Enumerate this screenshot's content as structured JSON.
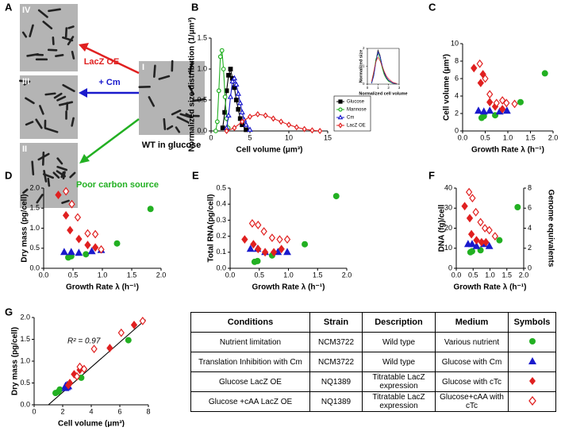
{
  "panel_labels": [
    "A",
    "B",
    "C",
    "D",
    "E",
    "F",
    "G"
  ],
  "panel_a": {
    "images": [
      "IV",
      "III",
      "II",
      "I"
    ],
    "arrows": [
      "LacZ OE",
      "+ Cm",
      "Poor carbon source"
    ],
    "caption": "WT in glucose"
  },
  "chart_data": [
    {
      "type": "line",
      "xlabel": "Cell volume (μm³)",
      "ylabel": "Normalized size distribution (1/μm³)",
      "xlim": [
        0,
        15
      ],
      "xticks": [
        0,
        5,
        10,
        15
      ],
      "ylim": [
        0,
        1.5
      ],
      "yticks": [
        {
          "value": 0,
          "label": "0.0"
        },
        0.5,
        {
          "value": 1,
          "label": "1.0"
        },
        1.5
      ],
      "legend": "lower right",
      "series": [
        {
          "name": "Glucose",
          "color": "#000000",
          "marker": "square",
          "open": false,
          "x": [
            1.5,
            1.75,
            2.0,
            2.25,
            2.5,
            2.75,
            3.0,
            3.25,
            3.5,
            3.75,
            4.0,
            4.5
          ],
          "values": [
            0.05,
            0.3,
            0.65,
            0.9,
            1.0,
            0.85,
            0.7,
            0.5,
            0.35,
            0.2,
            0.1,
            0.02
          ]
        },
        {
          "name": "Mannose",
          "color": "#22b022",
          "marker": "circle",
          "open": true,
          "x": [
            0.6,
            0.8,
            1.0,
            1.2,
            1.4,
            1.6,
            1.8,
            2.0,
            2.2
          ],
          "values": [
            0,
            0.15,
            0.65,
            1.2,
            1.3,
            1.0,
            0.55,
            0.2,
            0.05
          ]
        },
        {
          "name": "Cm",
          "color": "#1a1acc",
          "marker": "triangle",
          "open": true,
          "x": [
            2.0,
            2.25,
            2.5,
            2.75,
            3.0,
            3.25,
            3.5,
            3.75,
            4.0,
            4.25,
            4.5,
            5.0
          ],
          "values": [
            0.05,
            0.25,
            0.55,
            0.8,
            0.85,
            0.75,
            0.6,
            0.45,
            0.3,
            0.18,
            0.1,
            0.02
          ]
        },
        {
          "name": "LacZ OE",
          "color": "#e02020",
          "marker": "diamond",
          "open": true,
          "x": [
            2,
            3,
            4,
            5,
            6,
            7,
            8,
            9,
            10,
            11,
            12,
            13,
            14
          ],
          "values": [
            0,
            0.05,
            0.15,
            0.23,
            0.27,
            0.25,
            0.2,
            0.15,
            0.1,
            0.06,
            0.03,
            0.01,
            0
          ]
        }
      ]
    },
    {
      "type": "line",
      "xlabel": "Normalized cell volume",
      "ylabel": "Normalized size",
      "frame": true,
      "xlim": [
        0,
        3
      ],
      "xticks": [
        0,
        1,
        2,
        3
      ],
      "ylim": [
        0,
        2
      ],
      "yticks": [
        0,
        1,
        2
      ],
      "x": [
        0.4,
        0.6,
        0.8,
        1.0,
        1.2,
        1.4,
        1.6,
        1.8,
        2.0,
        2.4,
        2.8
      ],
      "series": [
        {
          "color": "#000000",
          "values": [
            0.05,
            0.5,
            1.3,
            1.9,
            1.6,
            1.0,
            0.6,
            0.35,
            0.2,
            0.05,
            0.01
          ]
        },
        {
          "color": "#22b022",
          "values": [
            0.1,
            0.6,
            1.4,
            1.7,
            1.4,
            0.9,
            0.5,
            0.3,
            0.15,
            0.05,
            0.01
          ]
        },
        {
          "color": "#1a1acc",
          "values": [
            0.05,
            0.45,
            1.2,
            1.8,
            1.55,
            1.05,
            0.65,
            0.38,
            0.22,
            0.06,
            0.02
          ]
        },
        {
          "color": "#e02020",
          "values": [
            0.15,
            0.7,
            1.25,
            1.5,
            1.3,
            1.0,
            0.7,
            0.45,
            0.3,
            0.1,
            0.03
          ]
        }
      ]
    },
    {
      "type": "scatter",
      "xlabel": "Growth Rate λ (h⁻¹)",
      "ylabel": "Cell volume (μm³)",
      "xlim": [
        0,
        2
      ],
      "xticks": [
        {
          "value": 0,
          "label": "0.0"
        },
        0.5,
        {
          "value": 1,
          "label": "1.0"
        },
        1.5,
        {
          "value": 2,
          "label": "2.0"
        }
      ],
      "ylim": [
        0,
        10
      ],
      "yticks": [
        0,
        2,
        4,
        6,
        8,
        10
      ],
      "series": [
        {
          "color": "#22b022",
          "marker": "circle",
          "open": false,
          "x": [
            0.42,
            0.47,
            0.72,
            1.28,
            1.82
          ],
          "values": [
            1.5,
            1.7,
            1.8,
            3.3,
            6.6
          ]
        },
        {
          "color": "#1a1acc",
          "marker": "triangle",
          "open": false,
          "x": [
            0.35,
            0.47,
            0.6,
            0.82,
            0.98
          ],
          "values": [
            2.3,
            2.2,
            2.3,
            2.2,
            2.3
          ]
        },
        {
          "color": "#e02020",
          "marker": "diamond",
          "open": false,
          "x": [
            0.25,
            0.4,
            0.45,
            0.6,
            0.72,
            0.88
          ],
          "values": [
            7.2,
            5.5,
            6.5,
            3.3,
            2.8,
            2.5
          ]
        },
        {
          "color": "#e02020",
          "marker": "diamond",
          "open": true,
          "x": [
            0.38,
            0.5,
            0.6,
            0.75,
            0.88,
            0.97,
            1.15
          ],
          "values": [
            7.7,
            6.0,
            4.2,
            3.2,
            3.5,
            3.2,
            3.1
          ]
        }
      ]
    },
    {
      "type": "scatter",
      "xlabel": "Growth Rate λ (h⁻¹)",
      "ylabel": "Dry mass (pg/cell)",
      "xlim": [
        0,
        2
      ],
      "xticks": [
        {
          "value": 0,
          "label": "0.0"
        },
        0.5,
        {
          "value": 1,
          "label": "1.0"
        },
        1.5,
        {
          "value": 2,
          "label": "2.0"
        }
      ],
      "ylim": [
        0,
        2
      ],
      "yticks": [
        {
          "value": 0,
          "label": "0.0"
        },
        0.5,
        {
          "value": 1,
          "label": "1.0"
        },
        1.5,
        {
          "value": 2,
          "label": "2.0"
        }
      ],
      "series": [
        {
          "color": "#22b022",
          "marker": "circle",
          "open": false,
          "x": [
            0.42,
            0.47,
            0.72,
            1.25,
            1.82
          ],
          "values": [
            0.27,
            0.3,
            0.35,
            0.62,
            1.48
          ]
        },
        {
          "color": "#1a1acc",
          "marker": "triangle",
          "open": false,
          "x": [
            0.35,
            0.47,
            0.6,
            0.82,
            0.98
          ],
          "values": [
            0.4,
            0.4,
            0.38,
            0.42,
            0.45
          ]
        },
        {
          "color": "#e02020",
          "marker": "diamond",
          "open": false,
          "x": [
            0.25,
            0.38,
            0.45,
            0.6,
            0.75,
            0.88
          ],
          "values": [
            1.83,
            1.32,
            0.95,
            0.73,
            0.58,
            0.52
          ]
        },
        {
          "color": "#e02020",
          "marker": "diamond",
          "open": true,
          "x": [
            0.38,
            0.48,
            0.58,
            0.75,
            0.88,
            0.98
          ],
          "values": [
            1.92,
            1.6,
            1.27,
            0.87,
            0.85,
            0.47
          ]
        }
      ]
    },
    {
      "type": "scatter",
      "xlabel": "Growth Rate λ (h⁻¹)",
      "ylabel": "Total RNA(pg/cell)",
      "xlim": [
        0,
        2
      ],
      "xticks": [
        {
          "value": 0,
          "label": "0.0"
        },
        0.5,
        {
          "value": 1,
          "label": "1.0"
        },
        1.5,
        {
          "value": 2,
          "label": "2.0"
        }
      ],
      "ylim": [
        0,
        0.5
      ],
      "yticks": [
        {
          "value": 0,
          "label": "0.0"
        },
        0.1,
        0.2,
        0.3,
        0.4,
        0.5
      ],
      "series": [
        {
          "color": "#22b022",
          "marker": "circle",
          "open": false,
          "x": [
            0.42,
            0.47,
            0.72,
            1.28,
            1.82
          ],
          "values": [
            0.04,
            0.045,
            0.08,
            0.15,
            0.45
          ]
        },
        {
          "color": "#1a1acc",
          "marker": "triangle",
          "open": false,
          "x": [
            0.35,
            0.47,
            0.6,
            0.82,
            0.98
          ],
          "values": [
            0.12,
            0.12,
            0.1,
            0.1,
            0.1
          ]
        },
        {
          "color": "#e02020",
          "marker": "diamond",
          "open": false,
          "x": [
            0.25,
            0.4,
            0.48,
            0.6,
            0.75,
            0.88
          ],
          "values": [
            0.18,
            0.15,
            0.12,
            0.1,
            0.1,
            0.12
          ]
        },
        {
          "color": "#e02020",
          "marker": "diamond",
          "open": true,
          "x": [
            0.38,
            0.48,
            0.58,
            0.72,
            0.85,
            0.98
          ],
          "values": [
            0.28,
            0.27,
            0.23,
            0.19,
            0.18,
            0.18
          ]
        }
      ]
    },
    {
      "type": "scatter",
      "xlabel": "Growth Rate λ (h⁻¹)",
      "ylabel": "DNA (fg)/cell",
      "y2label": "Genome equivalents",
      "xlim": [
        0,
        2
      ],
      "xticks": [
        {
          "value": 0,
          "label": "0.0"
        },
        0.5,
        {
          "value": 1,
          "label": "1.0"
        },
        1.5,
        {
          "value": 2,
          "label": "2.0"
        }
      ],
      "ylim": [
        0,
        40
      ],
      "yticks": [
        0,
        10,
        20,
        30,
        40
      ],
      "y2lim": [
        0,
        8
      ],
      "y2ticks": [
        0,
        2,
        4,
        6,
        8
      ],
      "series": [
        {
          "color": "#22b022",
          "marker": "circle",
          "open": false,
          "x": [
            0.42,
            0.47,
            0.72,
            1.28,
            1.82
          ],
          "values": [
            8,
            8.5,
            9,
            14,
            30.5
          ]
        },
        {
          "color": "#1a1acc",
          "marker": "triangle",
          "open": false,
          "x": [
            0.35,
            0.47,
            0.6,
            0.82,
            0.98
          ],
          "values": [
            12,
            12,
            11,
            12,
            11
          ]
        },
        {
          "color": "#e02020",
          "marker": "diamond",
          "open": false,
          "x": [
            0.25,
            0.4,
            0.45,
            0.6,
            0.75,
            0.88
          ],
          "values": [
            31,
            25,
            17,
            14,
            13,
            13
          ]
        },
        {
          "color": "#e02020",
          "marker": "diamond",
          "open": true,
          "x": [
            0.38,
            0.48,
            0.58,
            0.72,
            0.85,
            0.98,
            1.15
          ],
          "values": [
            38,
            35,
            28,
            23,
            20,
            19,
            16
          ]
        }
      ]
    },
    {
      "type": "scatter",
      "xlabel": "Cell volume (μm³)",
      "ylabel": "Dry mass (pg/cell)",
      "annotation": "R² = 0.97",
      "xlim": [
        0,
        8
      ],
      "xticks": [
        0,
        2,
        4,
        6,
        8
      ],
      "ylim": [
        0,
        2
      ],
      "yticks": [
        {
          "value": 0,
          "label": "0.0"
        },
        0.5,
        {
          "value": 1,
          "label": "1.0"
        },
        1.5,
        {
          "value": 2,
          "label": "2.0"
        }
      ],
      "series": [
        {
          "color": "#000000",
          "style": "line",
          "x": [
            1.0,
            7.8
          ],
          "values": [
            0,
            1.95
          ]
        },
        {
          "color": "#22b022",
          "marker": "circle",
          "open": false,
          "x": [
            1.5,
            1.7,
            1.8,
            3.3,
            6.6
          ],
          "values": [
            0.27,
            0.3,
            0.35,
            0.62,
            1.48
          ]
        },
        {
          "color": "#1a1acc",
          "marker": "triangle",
          "open": false,
          "x": [
            2.3,
            2.2,
            2.4,
            2.2,
            2.3
          ],
          "values": [
            0.4,
            0.38,
            0.42,
            0.43,
            0.45
          ]
        },
        {
          "color": "#e02020",
          "marker": "diamond",
          "open": false,
          "x": [
            7.0,
            5.3,
            3.2,
            2.8,
            2.5,
            2.4
          ],
          "values": [
            1.83,
            1.3,
            0.8,
            0.7,
            0.5,
            0.45
          ]
        },
        {
          "color": "#e02020",
          "marker": "diamond",
          "open": true,
          "x": [
            7.6,
            6.1,
            4.2,
            3.2,
            3.5,
            3.0
          ],
          "values": [
            1.92,
            1.65,
            1.28,
            0.87,
            0.82,
            0.65
          ]
        }
      ]
    }
  ],
  "table": {
    "header": [
      "Conditions",
      "Strain",
      "Description",
      "Medium",
      "Symbols"
    ],
    "rows": [
      [
        "Nutrient limitation",
        "NCM3722",
        "Wild type",
        "Various nutrient"
      ],
      [
        "Translation Inhibition with Cm",
        "NCM3722",
        "Wild type",
        "Glucose with Cm"
      ],
      [
        "Glucose LacZ OE",
        "NQ1389",
        "Titratable LacZ expression",
        "Glucose with cTc"
      ],
      [
        "Glucose +cAA LacZ OE",
        "NQ1389",
        "Titratable LacZ expression",
        "Glucose+cAA with cTc"
      ]
    ]
  }
}
